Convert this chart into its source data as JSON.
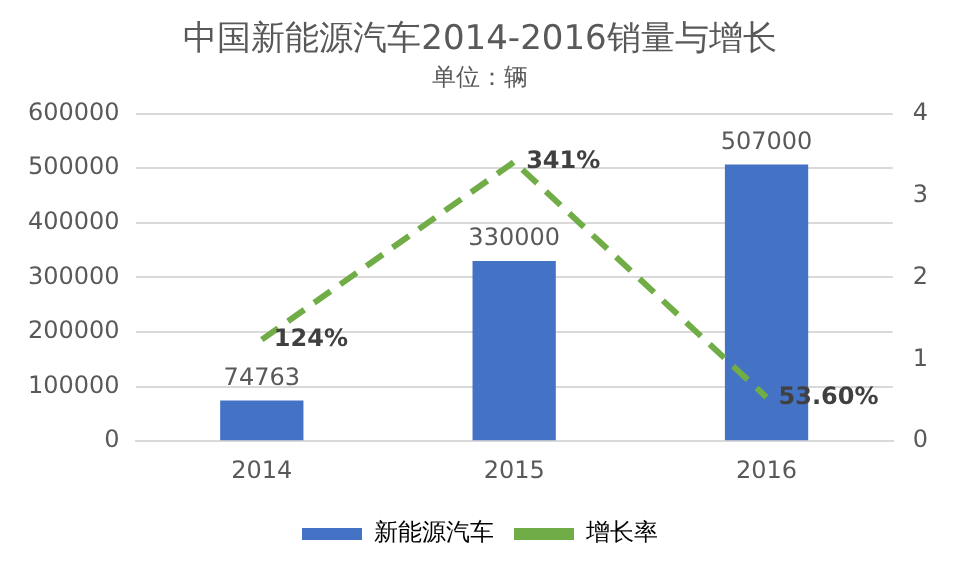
{
  "chart_data": {
    "type": "bar",
    "title": "中国新能源汽车2014-2016销量与增长",
    "subtitle": "单位：辆",
    "categories": [
      "2014",
      "2015",
      "2016"
    ],
    "series": [
      {
        "name": "新能源汽车",
        "color": "#4472c4",
        "values": [
          74763,
          330000,
          507000
        ],
        "value_labels": [
          "74763",
          "330000",
          "507000"
        ]
      },
      {
        "name": "增长率",
        "type": "line",
        "axis": "y2",
        "color": "#70ad47",
        "values": [
          1.24,
          3.41,
          0.536
        ],
        "value_labels": [
          "124%",
          "341%",
          "53.60%"
        ],
        "line_style": "dashed",
        "marker": "none"
      }
    ],
    "ylim": [
      0,
      600000
    ],
    "yticks": [
      0,
      100000,
      200000,
      300000,
      400000,
      500000,
      600000
    ],
    "y2lim": [
      0,
      4
    ],
    "y2ticks": [
      0,
      1,
      2,
      3,
      4
    ],
    "grid": "y",
    "legend": "bottom"
  }
}
